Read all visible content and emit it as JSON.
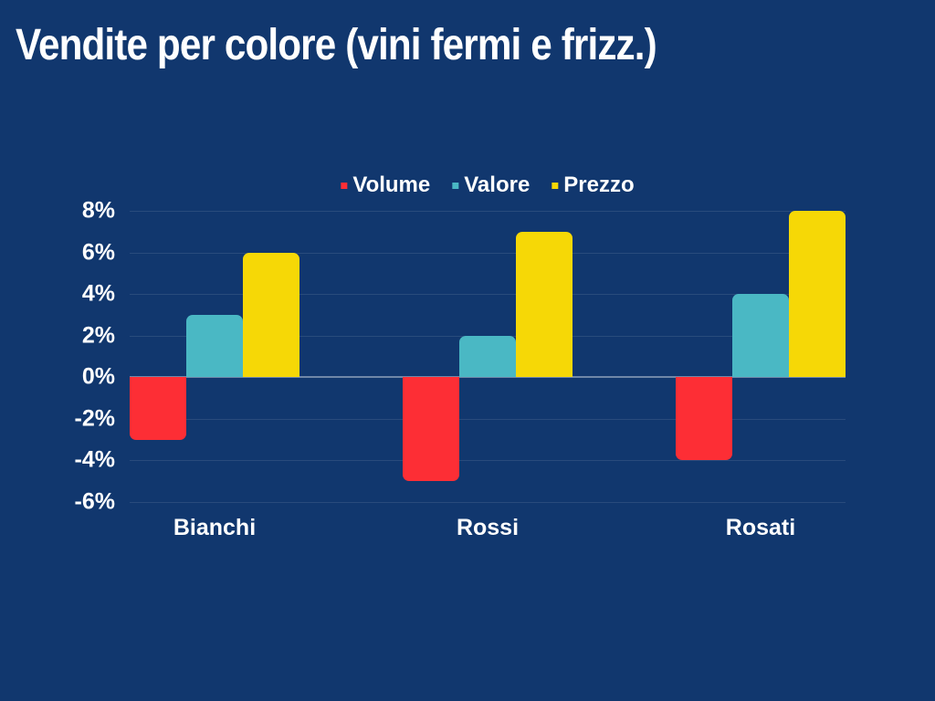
{
  "title": "Vendite per colore (vini fermi e frizz.)",
  "colors": {
    "background": "#11376e",
    "text": "#ffffff",
    "gridline": "rgba(255,255,255,0.10)",
    "zero_line": "rgba(255,255,255,0.40)",
    "volume": "#fd2e35",
    "valore": "#4ab8c4",
    "prezzo": "#f6d806"
  },
  "chart_data": {
    "type": "bar",
    "title": "Vendite per colore (vini fermi e frizz.)",
    "categories": [
      "Bianchi",
      "Rossi",
      "Rosati"
    ],
    "series": [
      {
        "name": "Volume",
        "color": "#fd2e35",
        "values": [
          -3,
          -5,
          -4
        ]
      },
      {
        "name": "Valore",
        "color": "#4ab8c4",
        "values": [
          3,
          2,
          4
        ]
      },
      {
        "name": "Prezzo",
        "color": "#f6d806",
        "values": [
          6,
          7,
          8
        ]
      }
    ],
    "ylim": [
      -6,
      8
    ],
    "ytick_step": 2,
    "ytick_labels": [
      "8%",
      "6%",
      "4%",
      "2%",
      "0%",
      "-2%",
      "-4%",
      "-6%"
    ],
    "value_unit": "%",
    "grid": true,
    "legend_position": "top-center",
    "baseline": 0
  }
}
